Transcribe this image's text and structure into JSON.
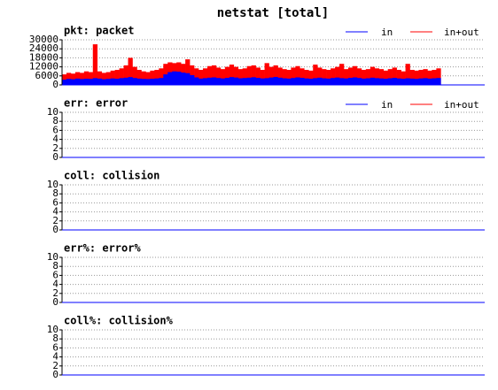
{
  "title": "netstat [total]",
  "chart_data": [
    {
      "type": "bar",
      "title": "pkt: packet",
      "ylim": [
        0,
        30000
      ],
      "yticks": [
        0,
        6000,
        12000,
        18000,
        24000,
        30000
      ],
      "grid": true,
      "legend": "top-right",
      "series": [
        {
          "name": "in",
          "color": "#0000ff",
          "values": [
            3500,
            4000,
            3800,
            4200,
            3900,
            4100,
            4000,
            4500,
            4200,
            3800,
            4000,
            4300,
            4100,
            4500,
            4800,
            5200,
            4600,
            4200,
            4000,
            3900,
            4100,
            4300,
            4600,
            7000,
            8500,
            9000,
            8800,
            8200,
            7800,
            6500,
            5000,
            4200,
            4500,
            4800,
            5000,
            4600,
            4300,
            4700,
            5200,
            4900,
            4400,
            4600,
            4800,
            5100,
            4700,
            4300,
            4500,
            4900,
            5300,
            4800,
            4400,
            4200,
            4600,
            5000,
            4700,
            4300,
            4100,
            4500,
            4800,
            4400,
            4200,
            4600,
            4900,
            4500,
            4300,
            4700,
            5000,
            4600,
            4200,
            4400,
            4800,
            4500,
            4300,
            4100,
            4400,
            4700,
            4300,
            4100,
            4400,
            4200,
            4000,
            4300,
            4500,
            4200,
            4400,
            4600,
            null,
            null,
            null,
            null,
            null,
            null,
            null,
            null,
            null,
            null
          ]
        },
        {
          "name": "in+out",
          "color": "#ff0000",
          "values": [
            7000,
            8000,
            7500,
            8500,
            8000,
            9000,
            8500,
            27000,
            9000,
            8000,
            8500,
            9500,
            10000,
            11000,
            13000,
            18000,
            12000,
            10000,
            9000,
            8500,
            9500,
            10000,
            11000,
            14000,
            15000,
            14500,
            15000,
            14000,
            17000,
            13000,
            11000,
            10000,
            11000,
            12500,
            13000,
            11500,
            10500,
            12000,
            13500,
            12000,
            10500,
            11000,
            12500,
            13000,
            11500,
            10000,
            14500,
            12000,
            13000,
            11500,
            10500,
            10000,
            11500,
            12500,
            11000,
            10000,
            9500,
            13500,
            11500,
            10500,
            10000,
            11000,
            12000,
            14000,
            10500,
            11500,
            12500,
            11000,
            10000,
            10500,
            12000,
            11000,
            10500,
            9500,
            10500,
            11500,
            10000,
            9000,
            14000,
            10000,
            9500,
            10000,
            10500,
            9500,
            10000,
            11000,
            null,
            null,
            null,
            null,
            null,
            null,
            null,
            null,
            null,
            null
          ]
        }
      ]
    },
    {
      "type": "bar",
      "title": "err: error",
      "ylim": [
        0,
        10
      ],
      "yticks": [
        0,
        2,
        4,
        6,
        8,
        10
      ],
      "grid": true,
      "legend": "top-right",
      "series": [
        {
          "name": "in",
          "color": "#0000ff",
          "values": [
            0,
            0,
            0,
            0,
            0,
            0,
            0,
            0,
            0,
            0,
            0,
            0,
            0,
            0,
            0,
            0,
            0,
            0,
            0,
            0,
            0,
            0,
            0,
            0,
            0,
            0,
            0,
            0,
            0,
            0,
            0,
            0,
            0,
            0,
            0,
            0,
            0,
            0,
            0,
            0,
            0,
            0,
            0,
            0,
            0,
            0,
            0,
            0,
            0,
            0,
            0,
            0,
            0,
            0,
            0,
            0,
            0,
            0,
            0,
            0,
            0,
            0,
            0,
            0,
            0,
            0,
            0,
            0,
            0,
            0,
            0,
            0,
            0,
            0,
            0,
            0,
            0,
            0,
            0,
            0,
            0,
            0,
            0,
            0,
            0,
            0,
            null,
            null,
            null,
            null,
            null,
            null,
            null,
            null,
            null,
            null
          ]
        },
        {
          "name": "in+out",
          "color": "#ff0000",
          "values": [
            0,
            0,
            0,
            0,
            0,
            0,
            0,
            0,
            0,
            0,
            0,
            0,
            0,
            0,
            0,
            0,
            0,
            0,
            0,
            0,
            0,
            0,
            0,
            0,
            0,
            0,
            0,
            0,
            0,
            0,
            0,
            0,
            0,
            0,
            0,
            0,
            0,
            0,
            0,
            0,
            0,
            0,
            0,
            0,
            0,
            0,
            0,
            0,
            0,
            0,
            0,
            0,
            0,
            0,
            0,
            0,
            0,
            0,
            0,
            0,
            0,
            0,
            0,
            0,
            0,
            0,
            0,
            0,
            0,
            0,
            0,
            0,
            0,
            0,
            0,
            0,
            0,
            0,
            0,
            0,
            0,
            0,
            0,
            0,
            0,
            0,
            null,
            null,
            null,
            null,
            null,
            null,
            null,
            null,
            null,
            null
          ]
        }
      ]
    },
    {
      "type": "bar",
      "title": "coll: collision",
      "ylim": [
        0,
        10
      ],
      "yticks": [
        0,
        2,
        4,
        6,
        8,
        10
      ],
      "grid": true,
      "series": []
    },
    {
      "type": "bar",
      "title": "err%: error%",
      "ylim": [
        0,
        10
      ],
      "yticks": [
        0,
        2,
        4,
        6,
        8,
        10
      ],
      "grid": true,
      "series": []
    },
    {
      "type": "bar",
      "title": "coll%: collision%",
      "ylim": [
        0,
        10
      ],
      "yticks": [
        0,
        2,
        4,
        6,
        8,
        10
      ],
      "grid": true,
      "series": []
    }
  ]
}
